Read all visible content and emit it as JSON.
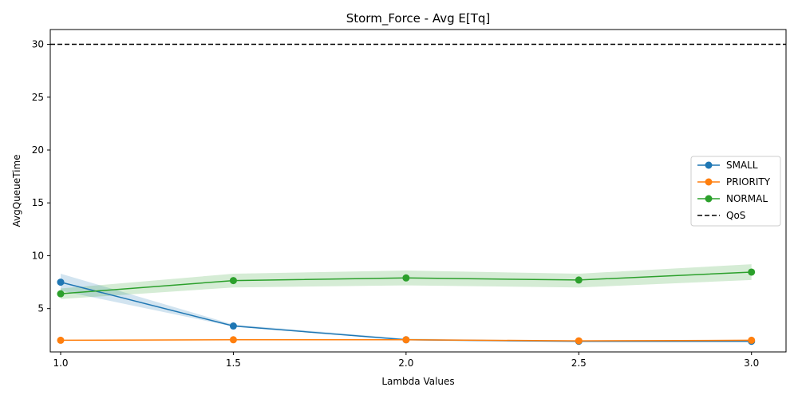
{
  "chart_data": {
    "type": "line",
    "title": "Storm_Force - Avg E[Tq]",
    "xlabel": "Lambda Values",
    "ylabel": "AvgQueueTime",
    "x": [
      1.0,
      1.5,
      2.0,
      2.5,
      3.0
    ],
    "x_tick_labels": [
      "1.0",
      "1.5",
      "2.0",
      "2.5",
      "3.0"
    ],
    "y_ticks": [
      5,
      10,
      15,
      20,
      25,
      30
    ],
    "y_tick_labels": [
      "5",
      "10",
      "15",
      "20",
      "25",
      "30"
    ],
    "xlim": [
      0.97,
      3.1
    ],
    "ylim": [
      0.9,
      31.4
    ],
    "grid": false,
    "legend_position": "center-right",
    "series": [
      {
        "name": "SMALL",
        "color": "#1f77b4",
        "values": [
          7.5,
          3.35,
          2.05,
          1.9,
          1.9
        ],
        "band_low": [
          6.7,
          3.3,
          2.0,
          1.85,
          1.85
        ],
        "band_high": [
          8.3,
          3.5,
          2.15,
          1.95,
          1.95
        ]
      },
      {
        "name": "PRIORITY",
        "color": "#ff7f0e",
        "values": [
          2.0,
          2.05,
          2.05,
          1.95,
          2.0
        ],
        "band_low": [
          1.95,
          2.0,
          2.0,
          1.9,
          1.95
        ],
        "band_high": [
          2.05,
          2.1,
          2.1,
          2.0,
          2.05
        ]
      },
      {
        "name": "NORMAL",
        "color": "#2ca02c",
        "values": [
          6.4,
          7.65,
          7.9,
          7.7,
          8.45
        ],
        "band_low": [
          5.9,
          7.0,
          7.2,
          7.0,
          7.7
        ],
        "band_high": [
          6.9,
          8.3,
          8.6,
          8.3,
          9.2
        ]
      }
    ],
    "reference_line": {
      "name": "QoS",
      "y": 30,
      "color": "#000000",
      "style": "dashed"
    }
  }
}
